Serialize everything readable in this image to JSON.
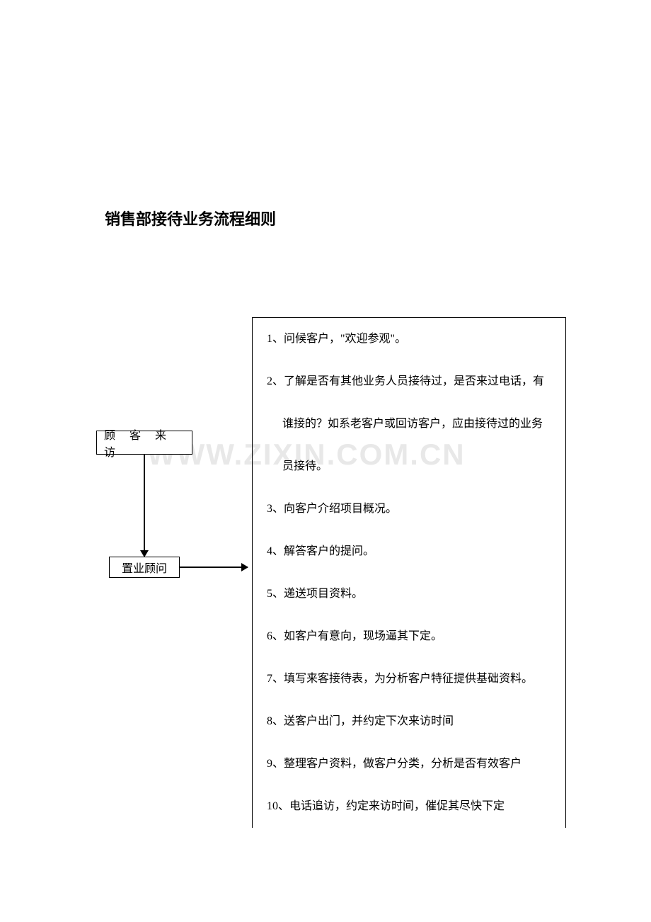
{
  "document": {
    "title": "销售部接待业务流程细则",
    "watermark": "WWW.ZIXIN.COM.CN"
  },
  "flowchart": {
    "type": "flowchart",
    "nodes": [
      {
        "id": "visitor",
        "label": "顾 客 来 访"
      },
      {
        "id": "advisor",
        "label": "置业顾问"
      }
    ],
    "edges": [
      {
        "from": "visitor",
        "to": "advisor",
        "direction": "down"
      },
      {
        "from": "advisor",
        "to": "details",
        "direction": "right"
      }
    ],
    "details": {
      "items": [
        {
          "text": "1、问候客户，\"欢迎参观\"。"
        },
        {
          "text": "2、了解是否有其他业务人员接待过，是否来过电话，有"
        },
        {
          "text": "谁接的？如系老客户或回访客户，应由接待过的业务",
          "indent": true
        },
        {
          "text": "员接待。",
          "indent": true
        },
        {
          "text": "3、向客户介绍项目概况。"
        },
        {
          "text": "4、解答客户的提问。"
        },
        {
          "text": "5、递送项目资料。"
        },
        {
          "text": "6、如客户有意向，现场逼其下定。"
        },
        {
          "text": "7、填写来客接待表，为分析客户特征提供基础资料。"
        },
        {
          "text": "8、送客户出门，并约定下次来访时间"
        },
        {
          "text": "9、整理客户资料，做客户分类，分析是否有效客户"
        },
        {
          "text": "10、电话追访，约定来访时间，催促其尽快下定"
        }
      ]
    },
    "colors": {
      "border": "#000000",
      "text": "#000000",
      "background": "#ffffff",
      "watermark": "#e8e8e8"
    },
    "layout": {
      "title_fontsize": 22,
      "body_fontsize": 16,
      "watermark_fontsize": 42,
      "node_border_width": 1,
      "arrow_width": 2
    }
  }
}
